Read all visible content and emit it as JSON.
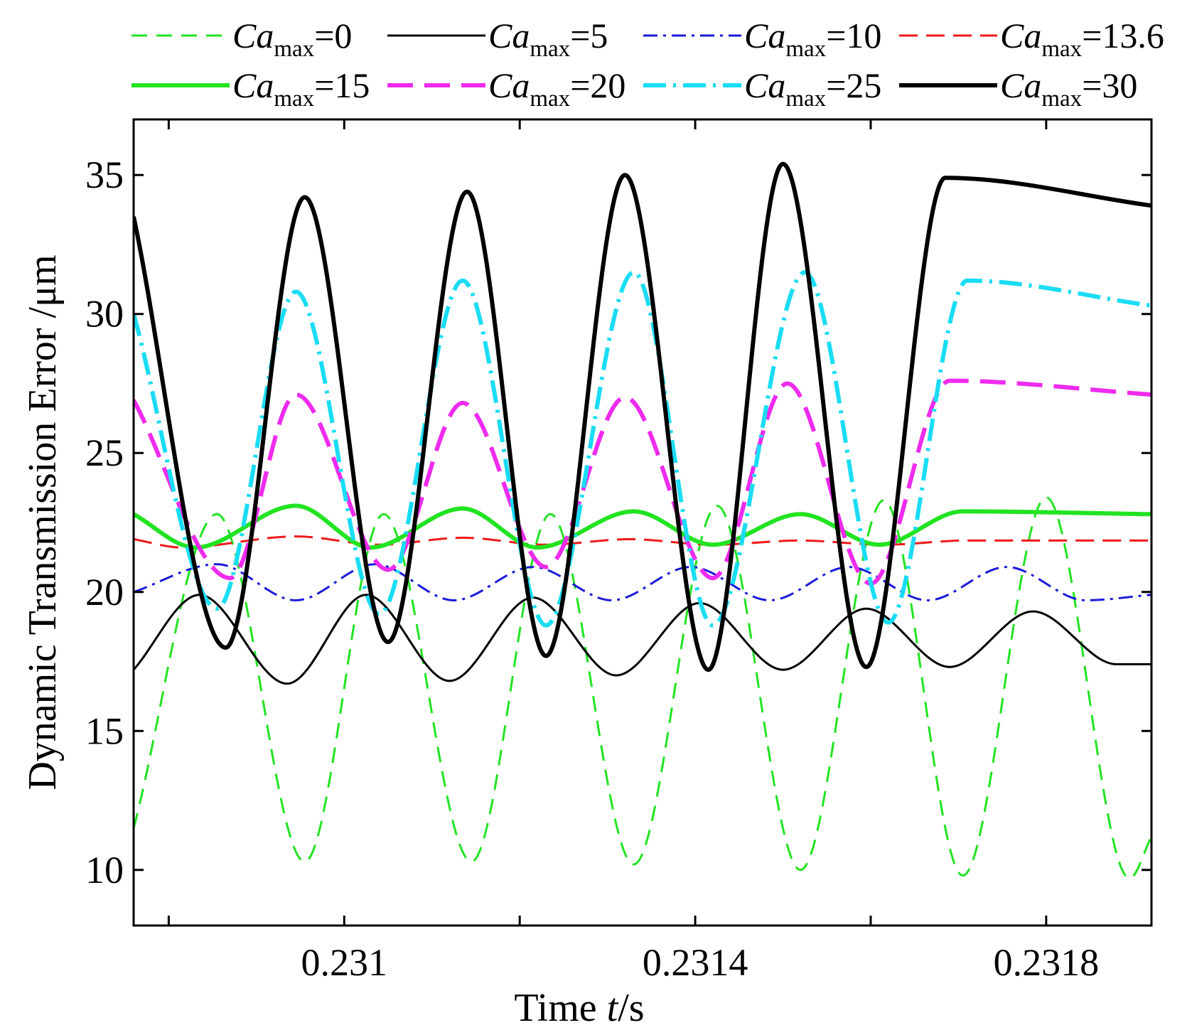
{
  "chart_data": {
    "type": "line",
    "xlabel": "Time t/s",
    "xlabel_prefix": "Time ",
    "xlabel_var": "t",
    "xlabel_suffix": "/s",
    "ylabel": "Dynamic Transmission Error /μm",
    "xlim": [
      0.23076,
      0.23192
    ],
    "ylim": [
      8,
      37
    ],
    "x_ticks": [
      0.2308,
      0.231,
      0.2312,
      0.2314,
      0.2316,
      0.2318
    ],
    "x_tick_labels": [
      "0.231",
      "0.2314",
      "0.2318"
    ],
    "x_tick_label_values": [
      0.231,
      0.2314,
      0.2318
    ],
    "y_ticks": [
      10,
      15,
      20,
      25,
      30,
      35
    ],
    "y_tick_labels": [
      "10",
      "15",
      "20",
      "25",
      "30",
      "35"
    ],
    "legend_position": "top",
    "series": [
      {
        "name": "Ca_max=0",
        "label_var": "Ca",
        "label_sub": "max",
        "label_value": "=0",
        "color": "#22e322",
        "width": 3,
        "dash": "22 13",
        "points": [
          [
            0.23076,
            11.5
          ],
          [
            0.230855,
            22.8
          ],
          [
            0.230955,
            10.3
          ],
          [
            0.231045,
            22.8
          ],
          [
            0.231145,
            10.3
          ],
          [
            0.231235,
            22.8
          ],
          [
            0.23133,
            10.2
          ],
          [
            0.231425,
            23.1
          ],
          [
            0.23152,
            10.0
          ],
          [
            0.231615,
            23.3
          ],
          [
            0.231705,
            9.8
          ],
          [
            0.2318,
            23.4
          ],
          [
            0.231895,
            9.7
          ],
          [
            0.23192,
            11.2
          ]
        ]
      },
      {
        "name": "Ca_max=5",
        "label_var": "Ca",
        "label_sub": "max",
        "label_value": "=5",
        "color": "#000000",
        "width": 3,
        "dash": "",
        "points": [
          [
            0.23076,
            17.2
          ],
          [
            0.230835,
            19.9
          ],
          [
            0.230935,
            16.7
          ],
          [
            0.231025,
            19.9
          ],
          [
            0.23112,
            16.8
          ],
          [
            0.231215,
            19.8
          ],
          [
            0.23131,
            17.0
          ],
          [
            0.231405,
            19.6
          ],
          [
            0.2315,
            17.2
          ],
          [
            0.231595,
            19.4
          ],
          [
            0.23169,
            17.3
          ],
          [
            0.231785,
            19.3
          ],
          [
            0.23188,
            17.4
          ],
          [
            0.23192,
            17.4
          ]
        ]
      },
      {
        "name": "Ca_max=10",
        "label_var": "Ca",
        "label_sub": "max",
        "label_value": "=10",
        "color": "#1b1bd8",
        "width": 3,
        "dash": "20 8 4 8",
        "points": [
          [
            0.23076,
            20.0
          ],
          [
            0.230855,
            21.0
          ],
          [
            0.230945,
            19.7
          ],
          [
            0.231035,
            21.0
          ],
          [
            0.231125,
            19.7
          ],
          [
            0.231215,
            20.9
          ],
          [
            0.231305,
            19.7
          ],
          [
            0.231395,
            20.9
          ],
          [
            0.231485,
            19.7
          ],
          [
            0.231575,
            20.9
          ],
          [
            0.231665,
            19.7
          ],
          [
            0.231755,
            20.9
          ],
          [
            0.231845,
            19.7
          ],
          [
            0.23192,
            19.9
          ]
        ]
      },
      {
        "name": "Ca_max=13.6",
        "label_var": "Ca",
        "label_sub": "max",
        "label_value": "=13.6",
        "color": "#ee1a1a",
        "width": 3,
        "dash": "26 12",
        "points": [
          [
            0.23076,
            21.9
          ],
          [
            0.230815,
            21.6
          ],
          [
            0.230945,
            22.0
          ],
          [
            0.23104,
            21.7
          ],
          [
            0.231135,
            21.95
          ],
          [
            0.23123,
            21.7
          ],
          [
            0.231325,
            21.9
          ],
          [
            0.23142,
            21.7
          ],
          [
            0.23152,
            21.85
          ],
          [
            0.231615,
            21.7
          ],
          [
            0.23171,
            21.85
          ],
          [
            0.23192,
            21.85
          ]
        ]
      },
      {
        "name": "Ca_max=15",
        "label_var": "Ca",
        "label_sub": "max",
        "label_value": "=15",
        "color": "#22e322",
        "width": 6,
        "dash": "",
        "points": [
          [
            0.23076,
            22.8
          ],
          [
            0.23083,
            21.6
          ],
          [
            0.230945,
            23.1
          ],
          [
            0.23103,
            21.6
          ],
          [
            0.231135,
            23.0
          ],
          [
            0.23122,
            21.6
          ],
          [
            0.23133,
            22.9
          ],
          [
            0.23142,
            21.7
          ],
          [
            0.23152,
            22.8
          ],
          [
            0.23161,
            21.7
          ],
          [
            0.231705,
            22.9
          ],
          [
            0.23192,
            22.8
          ]
        ]
      },
      {
        "name": "Ca_max=20",
        "label_var": "Ca",
        "label_sub": "max",
        "label_value": "=20",
        "color": "#ee2bee",
        "width": 6,
        "dash": "36 16",
        "points": [
          [
            0.23076,
            26.9
          ],
          [
            0.23087,
            20.5
          ],
          [
            0.230945,
            27.1
          ],
          [
            0.23105,
            20.8
          ],
          [
            0.231135,
            26.8
          ],
          [
            0.23123,
            20.9
          ],
          [
            0.23132,
            27.0
          ],
          [
            0.23142,
            20.5
          ],
          [
            0.231505,
            27.5
          ],
          [
            0.2316,
            20.3
          ],
          [
            0.23169,
            27.6
          ],
          [
            0.23192,
            27.1
          ]
        ]
      },
      {
        "name": "Ca_max=25",
        "label_var": "Ca",
        "label_sub": "max",
        "label_value": "=25",
        "color": "#1adcf4",
        "width": 6,
        "dash": "32 10 4 10",
        "points": [
          [
            0.23076,
            30.0
          ],
          [
            0.230855,
            19.4
          ],
          [
            0.230945,
            30.8
          ],
          [
            0.23104,
            19.2
          ],
          [
            0.231135,
            31.2
          ],
          [
            0.23123,
            18.8
          ],
          [
            0.23133,
            31.5
          ],
          [
            0.23142,
            18.8
          ],
          [
            0.231525,
            31.5
          ],
          [
            0.23162,
            18.9
          ],
          [
            0.23171,
            31.2
          ],
          [
            0.23192,
            30.3
          ]
        ]
      },
      {
        "name": "Ca_max=30",
        "label_var": "Ca",
        "label_sub": "max",
        "label_value": "=30",
        "color": "#000000",
        "width": 6,
        "dash": "",
        "points": [
          [
            0.23076,
            33.5
          ],
          [
            0.230865,
            18.0
          ],
          [
            0.230955,
            34.2
          ],
          [
            0.23105,
            18.2
          ],
          [
            0.23114,
            34.4
          ],
          [
            0.23123,
            17.7
          ],
          [
            0.23132,
            35.0
          ],
          [
            0.231415,
            17.2
          ],
          [
            0.2315,
            35.4
          ],
          [
            0.231595,
            17.3
          ],
          [
            0.231685,
            34.9
          ],
          [
            0.23192,
            33.9
          ]
        ]
      }
    ]
  }
}
